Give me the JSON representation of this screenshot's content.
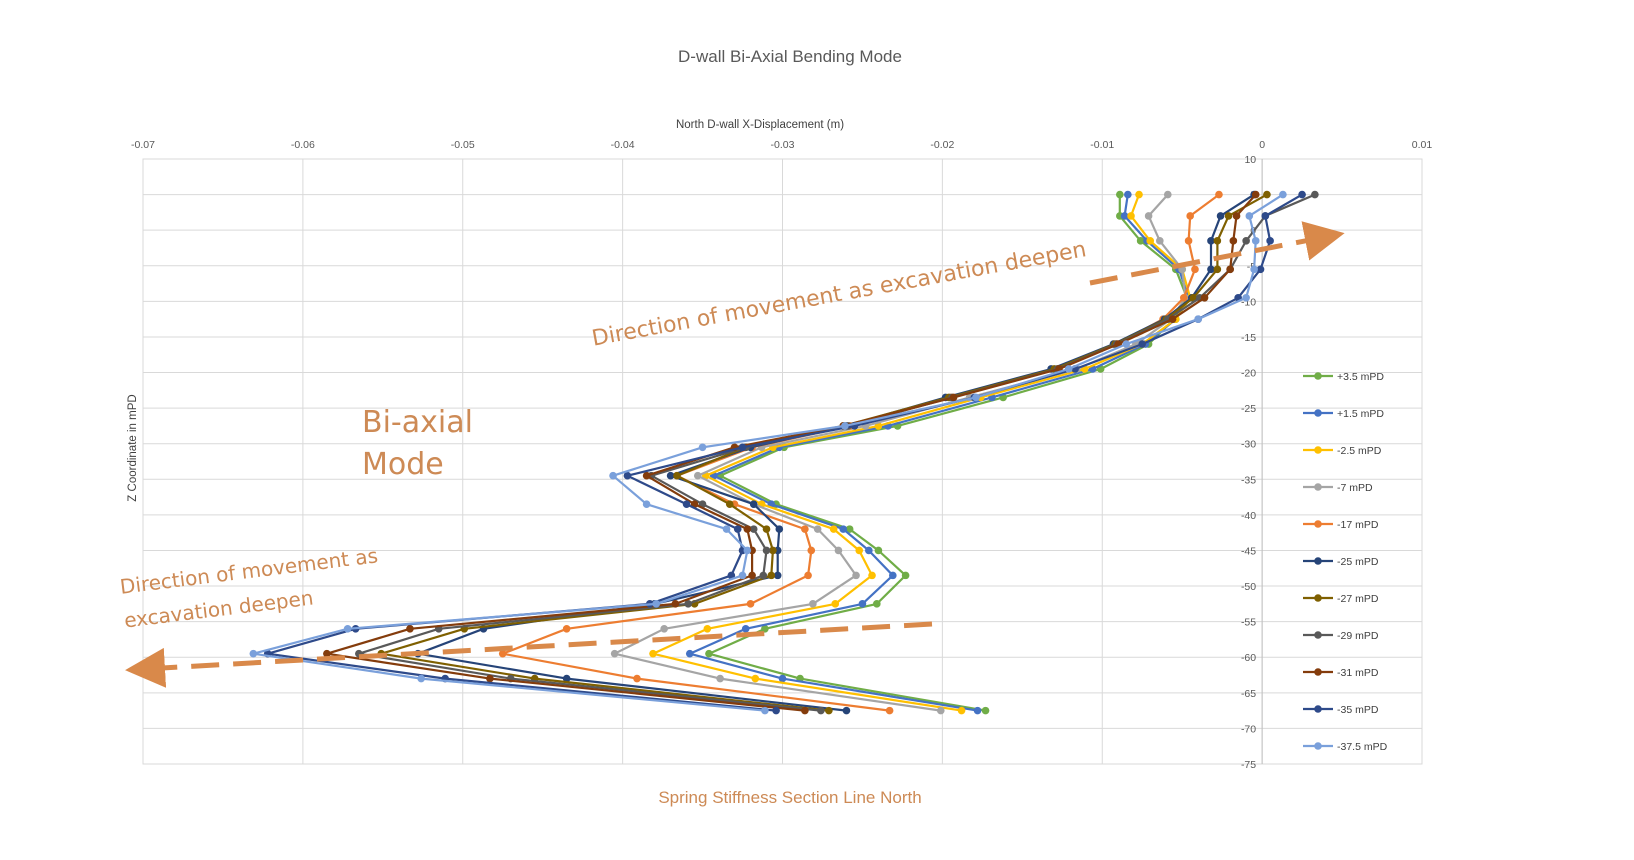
{
  "colors": {
    "annotation": "#cd8a55",
    "arrow": "#d9894a",
    "grid": "#d9d9d9",
    "axis_text": "#595959"
  },
  "annotations": {
    "mode_line1": "Bi-axial",
    "mode_line2": "Mode",
    "upper_arrow": "Direction of movement as excavation deepen",
    "lower_arrow": "Direction of movement as excavation deepen"
  },
  "chart_data": {
    "type": "line",
    "title": "D-wall Bi-Axial Bending Mode",
    "subtitle": "Spring Stiffness Section Line North",
    "xlabel": "North D-wall X-Displacement (m)",
    "ylabel": "Z Coordinate in mPD",
    "xlim": [
      -0.07,
      0.01
    ],
    "ylim": [
      -75,
      10
    ],
    "x_axis_position": "top",
    "y_axis_crosses_at_x": 0,
    "x_ticks": [
      -0.07,
      -0.06,
      -0.05,
      -0.04,
      -0.03,
      -0.02,
      -0.01,
      0,
      0.01
    ],
    "x_tick_labels": [
      "-0.07",
      "-0.06",
      "-0.05",
      "-0.04",
      "-0.03",
      "-0.02",
      "-0.01",
      "0",
      "0.01"
    ],
    "y_ticks": [
      10,
      5,
      0,
      -5,
      -10,
      -15,
      -20,
      -25,
      -30,
      -35,
      -40,
      -45,
      -50,
      -55,
      -60,
      -65,
      -70,
      -75
    ],
    "y_tick_labels": [
      "10",
      "5",
      "0",
      "-5",
      "-10",
      "-15",
      "-20",
      "-25",
      "-30",
      "-35",
      "-40",
      "-45",
      "-50",
      "-55",
      "-60",
      "-65",
      "-70",
      "-75"
    ],
    "grid": true,
    "legend_position": "right",
    "z": [
      5.0,
      2.0,
      -1.5,
      -5.5,
      -9.5,
      -12.5,
      -16.0,
      -19.5,
      -23.5,
      -27.5,
      -30.5,
      -34.5,
      -38.5,
      -42.0,
      -45.0,
      -48.5,
      -52.5,
      -56.0,
      -59.5,
      -63.0,
      -67.5
    ],
    "series": [
      {
        "name": "+3.5 mPD",
        "color": "#70ad47",
        "x": [
          -0.0089,
          -0.0089,
          -0.0076,
          -0.0054,
          -0.0047,
          -0.0055,
          -0.0071,
          -0.0101,
          -0.0162,
          -0.0228,
          -0.0299,
          -0.0339,
          -0.0304,
          -0.0258,
          -0.024,
          -0.0223,
          -0.0241,
          -0.0311,
          -0.0346,
          -0.0289,
          -0.0173
        ]
      },
      {
        "name": "+1.5 mPD",
        "color": "#4472c4",
        "x": [
          -0.0084,
          -0.0086,
          -0.0072,
          -0.0052,
          -0.0046,
          -0.0054,
          -0.0073,
          -0.0106,
          -0.0169,
          -0.0234,
          -0.0302,
          -0.0343,
          -0.0307,
          -0.0262,
          -0.0246,
          -0.0231,
          -0.025,
          -0.0323,
          -0.0358,
          -0.03,
          -0.0178
        ]
      },
      {
        "name": "-2.5 mPD",
        "color": "#ffc000",
        "x": [
          -0.0077,
          -0.0082,
          -0.007,
          -0.005,
          -0.0045,
          -0.0054,
          -0.0075,
          -0.0111,
          -0.0176,
          -0.024,
          -0.0306,
          -0.0348,
          -0.0313,
          -0.0268,
          -0.0252,
          -0.0244,
          -0.0267,
          -0.0347,
          -0.0381,
          -0.0317,
          -0.0188
        ]
      },
      {
        "name": "-7 mPD",
        "color": "#a5a5a5",
        "x": [
          -0.0059,
          -0.0071,
          -0.0064,
          -0.005,
          -0.0048,
          -0.0057,
          -0.0079,
          -0.0116,
          -0.0183,
          -0.0248,
          -0.0313,
          -0.0353,
          -0.0318,
          -0.0278,
          -0.0265,
          -0.0254,
          -0.0281,
          -0.0374,
          -0.0405,
          -0.0339,
          -0.0201
        ]
      },
      {
        "name": "-17 mPD",
        "color": "#ed7d31",
        "x": [
          -0.0027,
          -0.0045,
          -0.0046,
          -0.0042,
          -0.0049,
          -0.0062,
          -0.0091,
          -0.0128,
          -0.0195,
          -0.0258,
          -0.0319,
          -0.0366,
          -0.033,
          -0.0286,
          -0.0282,
          -0.0284,
          -0.032,
          -0.0435,
          -0.0475,
          -0.0391,
          -0.0233
        ]
      },
      {
        "name": "-25 mPD",
        "color": "#264478",
        "x": [
          -0.0005,
          -0.0026,
          -0.0032,
          -0.0032,
          -0.0044,
          -0.0061,
          -0.0093,
          -0.0132,
          -0.0198,
          -0.026,
          -0.032,
          -0.037,
          -0.0318,
          -0.0302,
          -0.0303,
          -0.0303,
          -0.038,
          -0.0487,
          -0.0528,
          -0.0435,
          -0.026
        ]
      },
      {
        "name": "-27 mPD",
        "color": "#7f6000",
        "x": [
          0.0003,
          -0.0021,
          -0.0028,
          -0.0028,
          -0.0043,
          -0.006,
          -0.0092,
          -0.013,
          -0.0196,
          -0.0262,
          -0.0323,
          -0.0366,
          -0.0333,
          -0.031,
          -0.0306,
          -0.0307,
          -0.0355,
          -0.0499,
          -0.0551,
          -0.0455,
          -0.0271
        ]
      },
      {
        "name": "-29 mPD",
        "color": "#595959",
        "x": [
          0.0033,
          0.0002,
          -0.001,
          -0.002,
          -0.0039,
          -0.0059,
          -0.0091,
          -0.0128,
          -0.0194,
          -0.0259,
          -0.0323,
          -0.0382,
          -0.035,
          -0.0318,
          -0.031,
          -0.0312,
          -0.0359,
          -0.0515,
          -0.0565,
          -0.047,
          -0.0276
        ]
      },
      {
        "name": "-31 mPD",
        "color": "#843c0c",
        "x": [
          -0.0004,
          -0.0016,
          -0.0018,
          -0.002,
          -0.0036,
          -0.0056,
          -0.009,
          -0.0127,
          -0.0193,
          -0.0262,
          -0.033,
          -0.0385,
          -0.0355,
          -0.0322,
          -0.0319,
          -0.0319,
          -0.0367,
          -0.0533,
          -0.0585,
          -0.0483,
          -0.0286
        ]
      },
      {
        "name": "-35 mPD",
        "color": "#2e4a8a",
        "x": [
          0.0025,
          0.0002,
          0.0005,
          -0.0001,
          -0.0015,
          -0.004,
          -0.0075,
          -0.0117,
          -0.018,
          -0.0255,
          -0.0325,
          -0.0397,
          -0.036,
          -0.0328,
          -0.0325,
          -0.0332,
          -0.0383,
          -0.0567,
          -0.0622,
          -0.0511,
          -0.0304
        ]
      },
      {
        "name": "-37.5 mPD",
        "color": "#7aa0db",
        "x": [
          0.0013,
          -0.0008,
          -0.0004,
          -0.0005,
          -0.001,
          -0.004,
          -0.0085,
          -0.0121,
          -0.0179,
          -0.0261,
          -0.035,
          -0.0406,
          -0.0385,
          -0.0335,
          -0.0322,
          -0.0325,
          -0.0379,
          -0.0572,
          -0.0631,
          -0.0526,
          -0.0311
        ]
      }
    ]
  }
}
